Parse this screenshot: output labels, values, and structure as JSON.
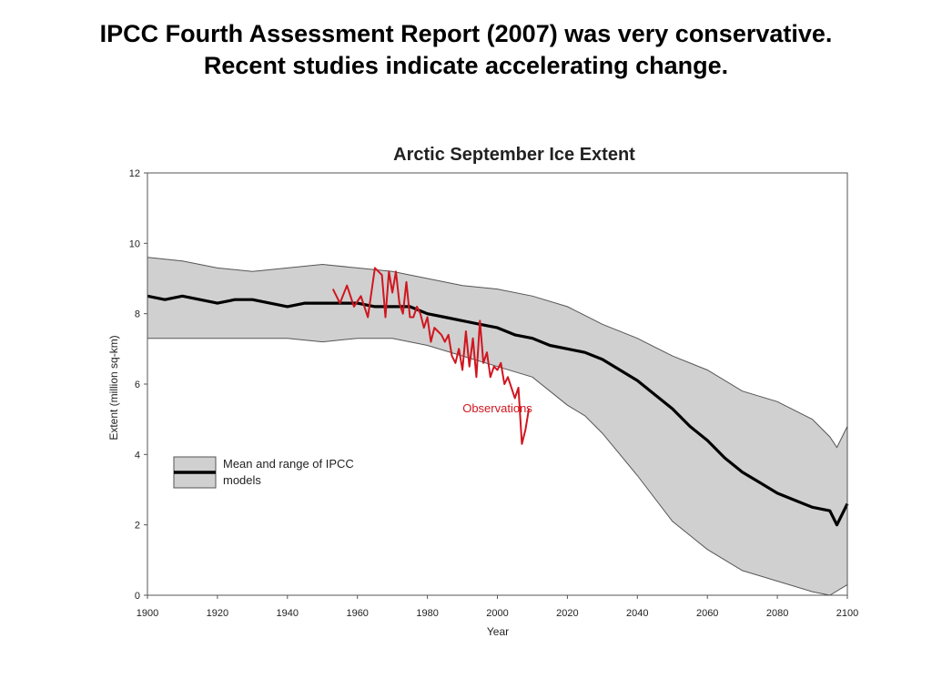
{
  "slide": {
    "title_line1": "IPCC Fourth Assessment Report (2007) was very conservative.",
    "title_line2": "Recent studies indicate accelerating change."
  },
  "chart_data": {
    "type": "line",
    "title": "Arctic September Ice Extent",
    "xlabel": "Year",
    "ylabel": "Extent (million sq-km)",
    "xlim": [
      1900,
      2100
    ],
    "ylim": [
      0,
      12
    ],
    "x_ticks": [
      1900,
      1920,
      1940,
      1960,
      1980,
      2000,
      2020,
      2040,
      2060,
      2080,
      2100
    ],
    "y_ticks": [
      0,
      2,
      4,
      6,
      8,
      10,
      12
    ],
    "grid": false,
    "legend": {
      "position": "left",
      "entries": [
        "Mean and range of IPCC",
        "models"
      ]
    },
    "annotations": [
      {
        "text": "Observations",
        "x": 2000,
        "y": 5.2
      }
    ],
    "colors": {
      "band": "#d0d0d0",
      "band_edge": "#555555",
      "mean": "#000000",
      "observations": "#d0161f"
    },
    "series": [
      {
        "role": "models-mean",
        "x": [
          1900,
          1905,
          1910,
          1915,
          1920,
          1925,
          1930,
          1935,
          1940,
          1945,
          1950,
          1955,
          1960,
          1965,
          1970,
          1975,
          1980,
          1985,
          1990,
          1995,
          2000,
          2005,
          2010,
          2015,
          2020,
          2025,
          2030,
          2035,
          2040,
          2045,
          2050,
          2055,
          2060,
          2065,
          2070,
          2075,
          2080,
          2085,
          2090,
          2095,
          2097,
          2100
        ],
        "y": [
          8.5,
          8.4,
          8.5,
          8.4,
          8.3,
          8.4,
          8.4,
          8.3,
          8.2,
          8.3,
          8.3,
          8.3,
          8.3,
          8.2,
          8.2,
          8.2,
          8.0,
          7.9,
          7.8,
          7.7,
          7.6,
          7.4,
          7.3,
          7.1,
          7.0,
          6.9,
          6.7,
          6.4,
          6.1,
          5.7,
          5.3,
          4.8,
          4.4,
          3.9,
          3.5,
          3.2,
          2.9,
          2.7,
          2.5,
          2.4,
          2.0,
          2.6
        ]
      },
      {
        "role": "models-range-upper",
        "x": [
          1900,
          1910,
          1920,
          1930,
          1940,
          1950,
          1960,
          1970,
          1980,
          1990,
          2000,
          2010,
          2020,
          2030,
          2040,
          2050,
          2060,
          2070,
          2080,
          2090,
          2095,
          2097,
          2100
        ],
        "y": [
          9.6,
          9.5,
          9.3,
          9.2,
          9.3,
          9.4,
          9.3,
          9.2,
          9.0,
          8.8,
          8.7,
          8.5,
          8.2,
          7.7,
          7.3,
          6.8,
          6.4,
          5.8,
          5.5,
          5.0,
          4.5,
          4.2,
          4.8
        ]
      },
      {
        "role": "models-range-lower",
        "x": [
          1900,
          1910,
          1920,
          1930,
          1940,
          1950,
          1960,
          1970,
          1980,
          1990,
          2000,
          2010,
          2020,
          2025,
          2030,
          2040,
          2050,
          2060,
          2070,
          2080,
          2090,
          2095,
          2100
        ],
        "y": [
          7.3,
          7.3,
          7.3,
          7.3,
          7.3,
          7.2,
          7.3,
          7.3,
          7.1,
          6.8,
          6.5,
          6.2,
          5.4,
          5.1,
          4.6,
          3.4,
          2.1,
          1.3,
          0.7,
          0.4,
          0.1,
          0.0,
          0.3
        ]
      },
      {
        "name": "Observations",
        "x": [
          1953,
          1955,
          1957,
          1959,
          1961,
          1963,
          1965,
          1966,
          1967,
          1968,
          1969,
          1970,
          1971,
          1972,
          1973,
          1974,
          1975,
          1976,
          1977,
          1978,
          1979,
          1980,
          1981,
          1982,
          1983,
          1984,
          1985,
          1986,
          1987,
          1988,
          1989,
          1990,
          1991,
          1992,
          1993,
          1994,
          1995,
          1996,
          1997,
          1998,
          1999,
          2000,
          2001,
          2002,
          2003,
          2004,
          2005,
          2006,
          2007,
          2008,
          2009
        ],
        "y": [
          8.7,
          8.3,
          8.8,
          8.2,
          8.5,
          7.9,
          9.3,
          9.2,
          9.1,
          7.9,
          9.2,
          8.6,
          9.2,
          8.3,
          8.0,
          8.9,
          7.9,
          7.9,
          8.2,
          8.0,
          7.6,
          7.9,
          7.2,
          7.6,
          7.5,
          7.4,
          7.2,
          7.4,
          6.8,
          6.6,
          7.0,
          6.4,
          7.5,
          6.5,
          7.3,
          6.2,
          7.8,
          6.6,
          6.9,
          6.2,
          6.5,
          6.4,
          6.6,
          6.0,
          6.2,
          5.9,
          5.6,
          5.9,
          4.3,
          4.7,
          5.3
        ]
      }
    ]
  }
}
